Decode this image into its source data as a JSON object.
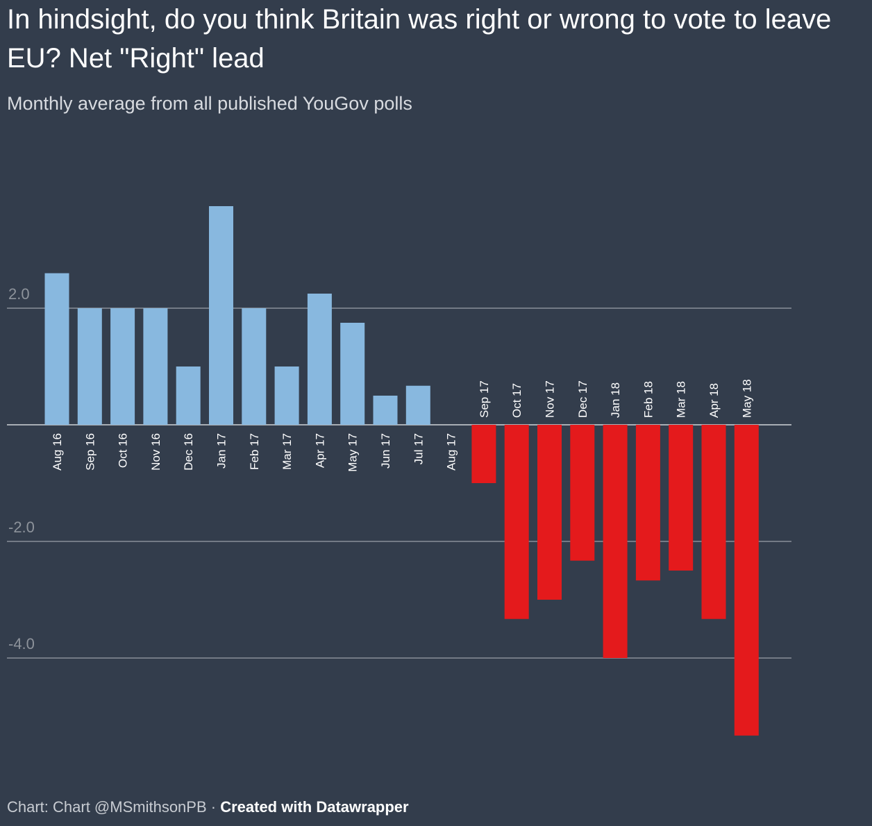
{
  "title": "In hindsight, do you think Britain was right or wrong to vote to leave EU? Net \"Right\" lead",
  "subtitle": "Monthly average from all published YouGov polls",
  "footer": {
    "source": "Chart: Chart @MSmithsonPB · ",
    "credit": "Created with Datawrapper"
  },
  "colors": {
    "background": "#333d4c",
    "positive": "#88b8df",
    "negative": "#e41a1c",
    "grid": "#8a9099"
  },
  "chart_data": {
    "type": "bar",
    "title": "In hindsight, do you think Britain was right or wrong to vote to leave EU? Net \"Right\" lead",
    "subtitle": "Monthly average from all published YouGov polls",
    "xlabel": "",
    "ylabel": "",
    "ylim": [
      -5.5,
      4.5
    ],
    "yticks": [
      -4.0,
      -2.0,
      0,
      2.0
    ],
    "ytick_labels": [
      "-4.0",
      "-2.0",
      "",
      "2.0"
    ],
    "grid": true,
    "categories": [
      "Aug 16",
      "Sep 16",
      "Oct 16",
      "Nov 16",
      "Dec 16",
      "Jan 17",
      "Feb 17",
      "Mar 17",
      "Apr 17",
      "May 17",
      "Jun 17",
      "Jul 17",
      "Aug 17",
      "Sep 17",
      "Oct 17",
      "Nov 17",
      "Dec 17",
      "Jan 18",
      "Feb 18",
      "Mar 18",
      "Apr 18",
      "May 18"
    ],
    "values": [
      2.6,
      2.0,
      2.0,
      2.0,
      1.0,
      3.75,
      2.0,
      1.0,
      2.25,
      1.75,
      0.5,
      0.67,
      0,
      -1.0,
      -3.33,
      -3.0,
      -2.33,
      -4.0,
      -2.67,
      -2.5,
      -3.33,
      -5.33
    ]
  }
}
